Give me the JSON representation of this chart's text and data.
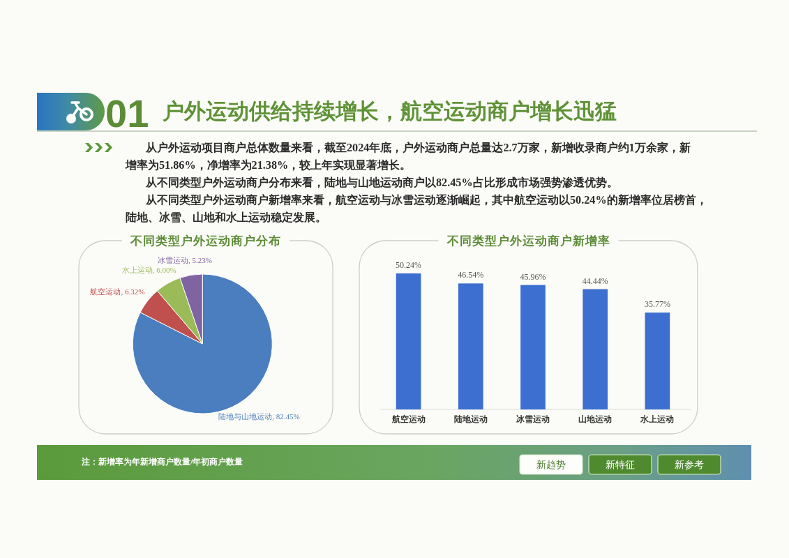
{
  "chart_data": [
    {
      "type": "other",
      "title": "户外运动供给持续增长，航空运动商户增长迅猛",
      "annotations": [
        "01",
        "从户外运动项目商户总体数量来看，截至2024年底，户外运动商户总量达2.7万家，新增收录商户约1万余家，新增率为51.86%，净增率为21.38%，较上年实现显著增长。",
        "从不同类型户外运动商户分布来看，陆地与山地运动商户以82.45%占比形成市场强势渗透优势。",
        "从不同类型户外运动商户新增率来看，航空运动与冰雪运动逐渐崛起，其中航空运动以50.24%的新增率位居榜首，陆地、冰雪、山地和水上运动稳定发展。"
      ]
    },
    {
      "type": "pie",
      "title": "不同类型户外运动商户分布",
      "categories": [
        "陆地与山地运动",
        "航空运动",
        "水上运动",
        "冰雪运动"
      ],
      "values": [
        82.45,
        6.32,
        6.0,
        5.23
      ],
      "value_labels": [
        "82.45%",
        "6.32%",
        "6.00%",
        "5.23%"
      ],
      "colors": [
        "#4a7ebf",
        "#c0504d",
        "#9bbb59",
        "#8064a2"
      ]
    },
    {
      "type": "bar",
      "title": "不同类型户外运动商户新增率",
      "categories": [
        "航空运动",
        "陆地运动",
        "冰雪运动",
        "山地运动",
        "水上运动"
      ],
      "values": [
        50.24,
        46.54,
        45.96,
        44.44,
        35.77
      ],
      "value_labels": [
        "50.24%",
        "46.54%",
        "45.96%",
        "44.44%",
        "35.77%"
      ],
      "color": "#3d6fd1",
      "tick_labels": "x"
    },
    {
      "type": "other",
      "annotations": [
        "注：新增率为年新增商户数量/年初商户数量",
        "新趋势",
        "新特征",
        "新参考"
      ]
    }
  ]
}
